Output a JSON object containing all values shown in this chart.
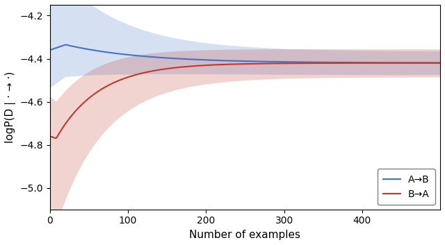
{
  "title": "",
  "xlabel": "Number of examples",
  "ylabel": "logP(D | · → ·)",
  "xlim": [
    0,
    500
  ],
  "ylim": [
    -5.1,
    -4.15
  ],
  "yticks": [
    -5.0,
    -4.8,
    -4.6,
    -4.4,
    -4.2
  ],
  "xticks": [
    0,
    100,
    200,
    300,
    400
  ],
  "blue_color": "#4472c4",
  "red_color": "#c0392b",
  "legend_labels": [
    "A→B",
    "B→A"
  ],
  "n_points": 500
}
